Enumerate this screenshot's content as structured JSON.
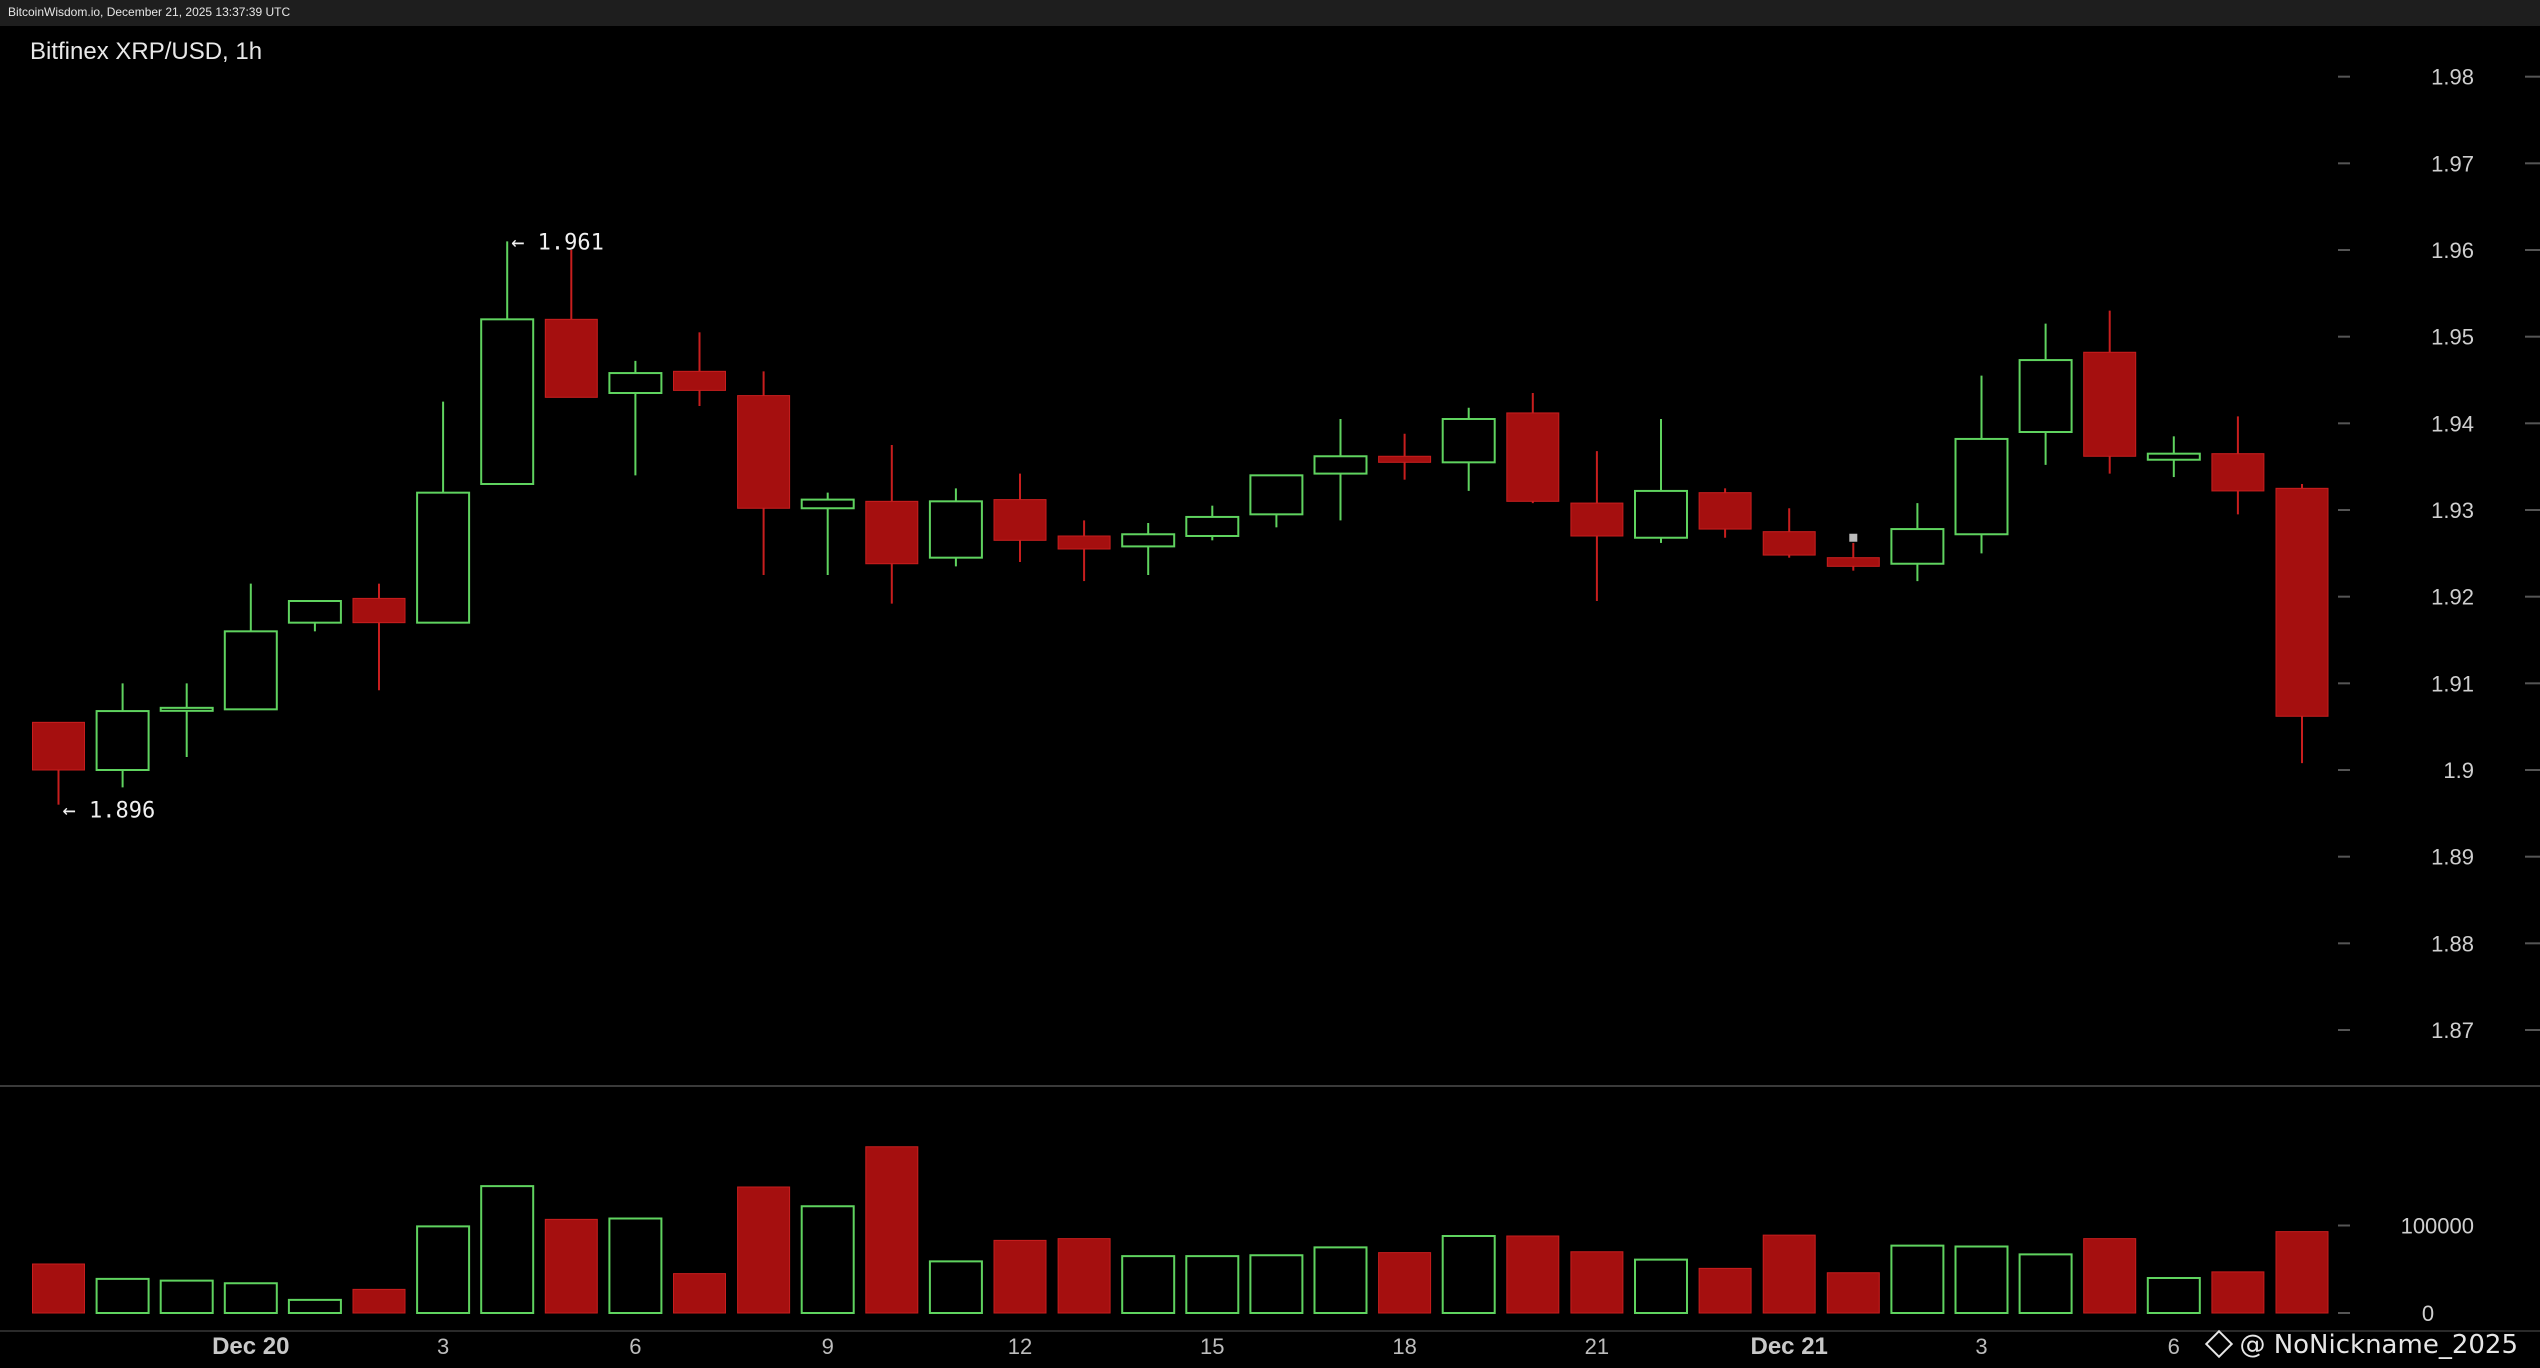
{
  "header": {
    "text": "BitcoinWisdom.io, December 21, 2025 13:37:39 UTC"
  },
  "watermark": {
    "text": "@ NoNickname_2025",
    "icon": "binance-diamond-icon"
  },
  "chart_data": {
    "type": "candlestick",
    "title": "Bitfinex XRP/USD, 1h",
    "price_axis": {
      "ylim": [
        1.864,
        1.984
      ],
      "ticks": [
        1.98,
        1.97,
        1.96,
        1.95,
        1.94,
        1.93,
        1.92,
        1.91,
        1.9,
        1.89,
        1.88,
        1.87
      ],
      "tick_labels": [
        "1.98",
        "1.97",
        "1.96",
        "1.95",
        "1.94",
        "1.93",
        "1.92",
        "1.91",
        "1.9",
        "1.89",
        "1.88",
        "1.87"
      ]
    },
    "volume_axis": {
      "ylim": [
        0,
        240000
      ],
      "ticks": [
        100000,
        0
      ],
      "tick_labels": [
        "100000",
        "0"
      ]
    },
    "x_ticks": [
      {
        "index": 3,
        "label": "Dec 20",
        "bold": true
      },
      {
        "index": 6,
        "label": "3"
      },
      {
        "index": 9,
        "label": "6"
      },
      {
        "index": 12,
        "label": "9"
      },
      {
        "index": 15,
        "label": "12"
      },
      {
        "index": 18,
        "label": "15"
      },
      {
        "index": 21,
        "label": "18"
      },
      {
        "index": 24,
        "label": "21"
      },
      {
        "index": 27,
        "label": "Dec 21",
        "bold": true
      },
      {
        "index": 30,
        "label": "3"
      },
      {
        "index": 33,
        "label": "6"
      }
    ],
    "colors": {
      "up": "#5fd35f",
      "down": "#a50f0f",
      "grid_tick": "#555555",
      "separator": "#3a3a3a"
    },
    "candles": [
      {
        "o": 1.9055,
        "h": 1.9055,
        "l": 1.896,
        "c": 1.9,
        "v": 56000
      },
      {
        "o": 1.9,
        "h": 1.91,
        "l": 1.898,
        "c": 1.9068,
        "v": 39000
      },
      {
        "o": 1.907,
        "h": 1.91,
        "l": 1.9015,
        "c": 1.907,
        "v": 37000
      },
      {
        "o": 1.907,
        "h": 1.9215,
        "l": 1.907,
        "c": 1.916,
        "v": 34000
      },
      {
        "o": 1.917,
        "h": 1.9195,
        "l": 1.916,
        "c": 1.9195,
        "v": 15000
      },
      {
        "o": 1.9198,
        "h": 1.9215,
        "l": 1.9092,
        "c": 1.917,
        "v": 27000
      },
      {
        "o": 1.917,
        "h": 1.9425,
        "l": 1.917,
        "c": 1.932,
        "v": 99000
      },
      {
        "o": 1.933,
        "h": 1.961,
        "l": 1.933,
        "c": 1.952,
        "v": 145000
      },
      {
        "o": 1.952,
        "h": 1.96,
        "l": 1.943,
        "c": 1.943,
        "v": 107000
      },
      {
        "o": 1.9435,
        "h": 1.9472,
        "l": 1.934,
        "c": 1.9458,
        "v": 108000
      },
      {
        "o": 1.946,
        "h": 1.9505,
        "l": 1.942,
        "c": 1.9438,
        "v": 45000
      },
      {
        "o": 1.9432,
        "h": 1.946,
        "l": 1.9225,
        "c": 1.9302,
        "v": 144000
      },
      {
        "o": 1.9302,
        "h": 1.932,
        "l": 1.9225,
        "c": 1.9312,
        "v": 122000
      },
      {
        "o": 1.931,
        "h": 1.9375,
        "l": 1.9192,
        "c": 1.9238,
        "v": 190000
      },
      {
        "o": 1.9245,
        "h": 1.9325,
        "l": 1.9235,
        "c": 1.931,
        "v": 59000
      },
      {
        "o": 1.9312,
        "h": 1.9342,
        "l": 1.924,
        "c": 1.9265,
        "v": 83000
      },
      {
        "o": 1.927,
        "h": 1.9288,
        "l": 1.9218,
        "c": 1.9255,
        "v": 85000
      },
      {
        "o": 1.9258,
        "h": 1.9285,
        "l": 1.9225,
        "c": 1.9272,
        "v": 65000
      },
      {
        "o": 1.927,
        "h": 1.9305,
        "l": 1.9265,
        "c": 1.9292,
        "v": 65000
      },
      {
        "o": 1.9295,
        "h": 1.934,
        "l": 1.928,
        "c": 1.934,
        "v": 66000
      },
      {
        "o": 1.9342,
        "h": 1.9405,
        "l": 1.9288,
        "c": 1.9362,
        "v": 75000
      },
      {
        "o": 1.9362,
        "h": 1.9388,
        "l": 1.9335,
        "c": 1.9355,
        "v": 69000
      },
      {
        "o": 1.9355,
        "h": 1.9418,
        "l": 1.9322,
        "c": 1.9405,
        "v": 88000
      },
      {
        "o": 1.9412,
        "h": 1.9435,
        "l": 1.9308,
        "c": 1.931,
        "v": 88000
      },
      {
        "o": 1.9308,
        "h": 1.9368,
        "l": 1.9195,
        "c": 1.927,
        "v": 70000
      },
      {
        "o": 1.9268,
        "h": 1.9405,
        "l": 1.9262,
        "c": 1.9322,
        "v": 61000
      },
      {
        "o": 1.932,
        "h": 1.9325,
        "l": 1.9268,
        "c": 1.9278,
        "v": 51000
      },
      {
        "o": 1.9275,
        "h": 1.9302,
        "l": 1.9245,
        "c": 1.9248,
        "v": 89000
      },
      {
        "o": 1.9245,
        "h": 1.9262,
        "l": 1.923,
        "c": 1.9235,
        "v": 46000
      },
      {
        "o": 1.9238,
        "h": 1.9308,
        "l": 1.9218,
        "c": 1.9278,
        "v": 77000
      },
      {
        "o": 1.9272,
        "h": 1.9455,
        "l": 1.925,
        "c": 1.9382,
        "v": 76000
      },
      {
        "o": 1.939,
        "h": 1.9515,
        "l": 1.9352,
        "c": 1.9473,
        "v": 67000
      },
      {
        "o": 1.9482,
        "h": 1.953,
        "l": 1.9342,
        "c": 1.9362,
        "v": 85000
      },
      {
        "o": 1.9358,
        "h": 1.9385,
        "l": 1.9338,
        "c": 1.9365,
        "v": 40000
      },
      {
        "o": 1.9365,
        "h": 1.9408,
        "l": 1.9295,
        "c": 1.9322,
        "v": 47000
      },
      {
        "o": 1.9325,
        "h": 1.933,
        "l": 1.9008,
        "c": 1.9062,
        "v": 93000
      }
    ],
    "annotations": [
      {
        "index": 0,
        "price": 1.896,
        "text": "← 1.896",
        "at": "low"
      },
      {
        "index": 7,
        "price": 1.961,
        "text": "← 1.961",
        "at": "high"
      }
    ]
  }
}
